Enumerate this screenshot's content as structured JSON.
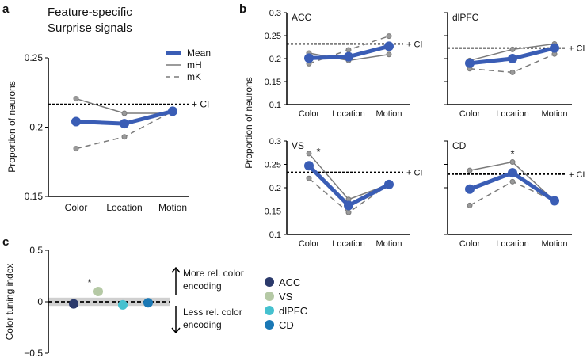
{
  "colors": {
    "mean": "#3a5db5",
    "animal": "#7a7a7a",
    "ci": "#000000",
    "band": "#d0d0d0"
  },
  "chart_data": [
    {
      "panel": "a",
      "type": "line",
      "title": "Feature-specific\nSurprise signals",
      "title_lines": [
        "Feature-specific",
        "Surprise signals"
      ],
      "ylabel": "Proportion of neurons",
      "ylim": [
        0.15,
        0.25
      ],
      "yticks": [
        "0.15",
        "0.2",
        "0.25"
      ],
      "ytick_values": [
        0.15,
        0.2,
        0.25
      ],
      "categories": [
        "Color",
        "Location",
        "Motion"
      ],
      "ci": 0.2165,
      "ci_label": "+ CI",
      "legend": [
        "Mean",
        "mH",
        "mK"
      ],
      "series": [
        {
          "name": "Mean",
          "values": [
            0.204,
            0.2025,
            0.2115
          ]
        },
        {
          "name": "mH",
          "values": [
            0.2205,
            0.21,
            0.21
          ]
        },
        {
          "name": "mK",
          "values": [
            0.1845,
            0.193,
            0.2115
          ]
        }
      ]
    },
    {
      "panel": "b",
      "region": "ACC",
      "type": "line",
      "ylabel": "Proportion of neurons",
      "ylim": [
        0.1,
        0.3
      ],
      "yticks": [
        "0.1",
        "0.15",
        "0.2",
        "0.25",
        "0.3"
      ],
      "ytick_values": [
        0.1,
        0.15,
        0.2,
        0.25,
        0.3
      ],
      "categories": [
        "Color",
        "Location",
        "Motion"
      ],
      "ci": 0.232,
      "ci_label": "+ CI",
      "star": null,
      "series": [
        {
          "name": "Mean",
          "values": [
            0.201,
            0.204,
            0.227
          ]
        },
        {
          "name": "mH",
          "values": [
            0.212,
            0.196,
            0.209
          ]
        },
        {
          "name": "mK",
          "values": [
            0.189,
            0.219,
            0.249
          ]
        }
      ]
    },
    {
      "panel": "b",
      "region": "dlPFC",
      "type": "line",
      "ylim": [
        0.1,
        0.3
      ],
      "ytick_values": [
        0.1,
        0.15,
        0.2,
        0.25,
        0.3
      ],
      "categories": [
        "Color",
        "Location",
        "Motion"
      ],
      "ci": 0.223,
      "ci_label": "+ CI",
      "star": null,
      "series": [
        {
          "name": "Mean",
          "values": [
            0.19,
            0.2,
            0.223
          ]
        },
        {
          "name": "mH",
          "values": [
            0.196,
            0.22,
            0.232
          ]
        },
        {
          "name": "mK",
          "values": [
            0.178,
            0.17,
            0.21
          ]
        }
      ]
    },
    {
      "panel": "b",
      "region": "VS",
      "type": "line",
      "ylim": [
        0.1,
        0.3
      ],
      "yticks": [
        "0.1",
        "0.15",
        "0.2",
        "0.25",
        "0.3"
      ],
      "ytick_values": [
        0.1,
        0.15,
        0.2,
        0.25,
        0.3
      ],
      "categories": [
        "Color",
        "Location",
        "Motion"
      ],
      "ci": 0.233,
      "ci_label": "+ CI",
      "star": "Color",
      "star_label": "*",
      "series": [
        {
          "name": "Mean",
          "values": [
            0.247,
            0.162,
            0.207
          ]
        },
        {
          "name": "mH",
          "values": [
            0.273,
            0.175,
            0.207
          ]
        },
        {
          "name": "mK",
          "values": [
            0.22,
            0.147,
            0.207
          ]
        }
      ]
    },
    {
      "panel": "b",
      "region": "CD",
      "type": "line",
      "ylim": [
        0.1,
        0.3
      ],
      "ytick_values": [
        0.1,
        0.15,
        0.2,
        0.25,
        0.3
      ],
      "categories": [
        "Color",
        "Location",
        "Motion"
      ],
      "ci": 0.229,
      "ci_label": "+ CI",
      "star": "Location",
      "star_label": "*",
      "series": [
        {
          "name": "Mean",
          "values": [
            0.197,
            0.232,
            0.172
          ]
        },
        {
          "name": "mH",
          "values": [
            0.237,
            0.255,
            0.172
          ]
        },
        {
          "name": "mK",
          "values": [
            0.162,
            0.213,
            0.172
          ]
        }
      ]
    },
    {
      "panel": "c",
      "type": "scatter",
      "ylabel": "Color tuning index",
      "ylim": [
        -0.5,
        0.5
      ],
      "yticks": [
        "0.5",
        "0",
        "−0.5"
      ],
      "ytick_values": [
        0.5,
        0,
        -0.5
      ],
      "band": [
        -0.04,
        0.04
      ],
      "points": [
        {
          "name": "ACC",
          "value": -0.02,
          "color": "#2b3a6b"
        },
        {
          "name": "VS",
          "value": 0.1,
          "color": "#b5c9a5",
          "star": "*"
        },
        {
          "name": "dlPFC",
          "value": -0.03,
          "color": "#45c1cf"
        },
        {
          "name": "CD",
          "value": -0.01,
          "color": "#1a78b5"
        }
      ],
      "annotations": {
        "up": [
          "More rel. color",
          "encoding"
        ],
        "down": [
          "Less rel. color",
          "encoding"
        ]
      }
    }
  ],
  "panel_letters": [
    "a",
    "b",
    "c"
  ]
}
